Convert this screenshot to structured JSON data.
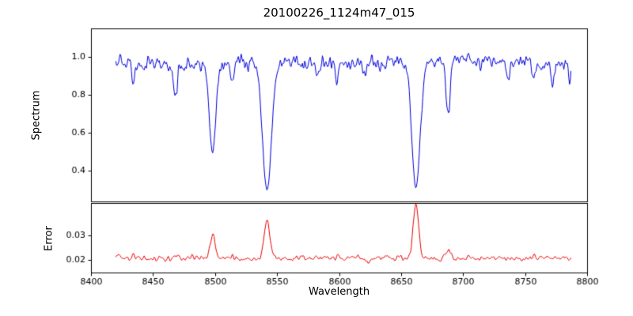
{
  "chart_data": {
    "type": "line",
    "title": "20100226_1124m47_015",
    "xlabel": "Wavelength",
    "xlim": [
      8400,
      8800
    ],
    "x_data_range": [
      8420,
      8787
    ],
    "grid": false,
    "legend": "none",
    "x_ticks": [
      {
        "v": 8400,
        "label": "8400"
      },
      {
        "v": 8450,
        "label": "8450"
      },
      {
        "v": 8500,
        "label": "8500"
      },
      {
        "v": 8550,
        "label": "8550"
      },
      {
        "v": 8600,
        "label": "8600"
      },
      {
        "v": 8650,
        "label": "8650"
      },
      {
        "v": 8700,
        "label": "8700"
      },
      {
        "v": 8750,
        "label": "8750"
      },
      {
        "v": 8800,
        "label": "8800"
      }
    ],
    "spectrum": {
      "ylabel": "Spectrum",
      "color": "#0000dd",
      "ylim": [
        0.24,
        1.15
      ],
      "y_ticks": [
        {
          "v": 0.4,
          "label": "0.4"
        },
        {
          "v": 0.6,
          "label": "0.6"
        },
        {
          "v": 0.8,
          "label": "0.8"
        },
        {
          "v": 1.0,
          "label": "1.0"
        }
      ],
      "continuum": 0.97,
      "noise_amplitude": 0.018,
      "absorption_lines": [
        {
          "center": 8434,
          "depth": 0.1,
          "sigma": 1.2
        },
        {
          "center": 8468,
          "depth": 0.16,
          "sigma": 1.4
        },
        {
          "center": 8498,
          "depth": 0.47,
          "sigma": 2.6
        },
        {
          "center": 8514,
          "depth": 0.11,
          "sigma": 1.3
        },
        {
          "center": 8542,
          "depth": 0.68,
          "sigma": 3.6
        },
        {
          "center": 8583,
          "depth": 0.09,
          "sigma": 1.2
        },
        {
          "center": 8598,
          "depth": 0.08,
          "sigma": 1.2
        },
        {
          "center": 8621,
          "depth": 0.07,
          "sigma": 1.2
        },
        {
          "center": 8662,
          "depth": 0.66,
          "sigma": 3.4
        },
        {
          "center": 8688,
          "depth": 0.26,
          "sigma": 1.8
        },
        {
          "center": 8736,
          "depth": 0.1,
          "sigma": 1.2
        },
        {
          "center": 8757,
          "depth": 0.1,
          "sigma": 1.2
        },
        {
          "center": 8772,
          "depth": 0.11,
          "sigma": 1.2
        },
        {
          "center": 8786,
          "depth": 0.1,
          "sigma": 1.0
        }
      ]
    },
    "error": {
      "ylabel": "Error",
      "color": "#ee0000",
      "ylim": [
        0.015,
        0.043
      ],
      "y_ticks": [
        {
          "v": 0.02,
          "label": "0.02"
        },
        {
          "v": 0.03,
          "label": "0.03"
        }
      ],
      "baseline": 0.0206,
      "noise_amplitude": 0.0005,
      "peaks": [
        {
          "center": 8434,
          "height": 0.0012,
          "sigma": 1.2
        },
        {
          "center": 8468,
          "height": 0.0015,
          "sigma": 1.2
        },
        {
          "center": 8498,
          "height": 0.0095,
          "sigma": 2.0
        },
        {
          "center": 8514,
          "height": 0.001,
          "sigma": 1.2
        },
        {
          "center": 8542,
          "height": 0.0148,
          "sigma": 2.4
        },
        {
          "center": 8662,
          "height": 0.0215,
          "sigma": 2.2
        },
        {
          "center": 8688,
          "height": 0.0032,
          "sigma": 1.6
        },
        {
          "center": 8757,
          "height": 0.0012,
          "sigma": 1.2
        }
      ]
    }
  }
}
